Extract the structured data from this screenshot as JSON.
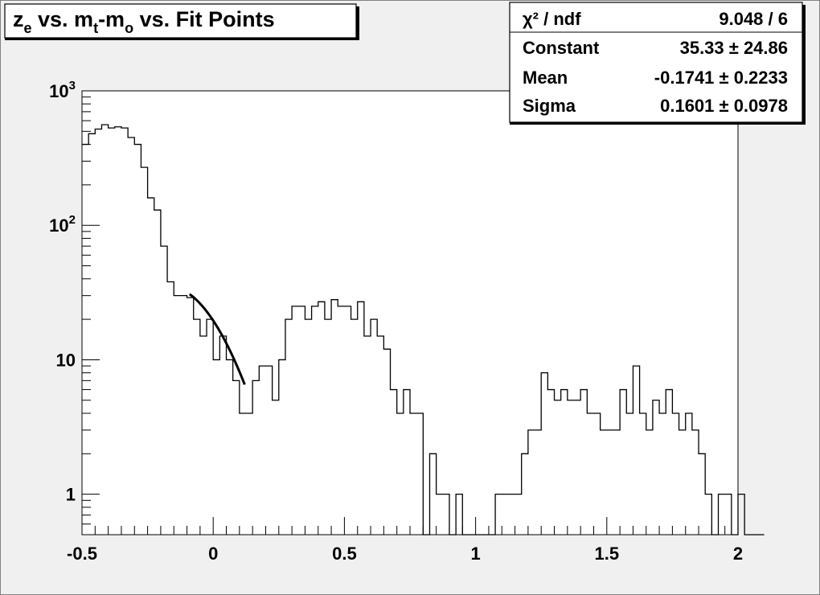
{
  "chart_data": {
    "type": "histogram",
    "title": {
      "base": "z",
      "sub1": "e",
      "mid1": " vs. m",
      "sub2": "t",
      "mid2": "-m",
      "sub3": "o",
      "tail": " vs. Fit Points"
    },
    "xlabel": "",
    "ylabel": "",
    "x_scale": "linear",
    "y_scale": "log",
    "xlim": [
      -0.5,
      2.0
    ],
    "ylim": [
      0.5,
      1000
    ],
    "grid": false,
    "x_ticks": [
      {
        "v": -0.5,
        "label": "-0.5"
      },
      {
        "v": 0,
        "label": "0"
      },
      {
        "v": 0.5,
        "label": "0.5"
      },
      {
        "v": 1,
        "label": "1"
      },
      {
        "v": 1.5,
        "label": "1.5"
      },
      {
        "v": 2,
        "label": "2"
      }
    ],
    "y_ticks": [
      {
        "v": 1000,
        "base": "10",
        "exp": "3"
      },
      {
        "v": 100,
        "base": "10",
        "exp": "2"
      },
      {
        "v": 10,
        "base": "10",
        "exp": ""
      },
      {
        "v": 1,
        "base": "1",
        "exp": ""
      }
    ],
    "bins": {
      "start": -0.5,
      "width": 0.025,
      "counts": [
        400,
        480,
        520,
        560,
        530,
        540,
        530,
        450,
        400,
        270,
        160,
        130,
        70,
        38,
        30,
        30,
        29,
        20,
        15,
        20,
        10,
        15,
        10,
        7,
        4,
        4,
        7,
        9,
        9,
        5,
        10,
        20,
        25,
        25,
        20,
        25,
        27,
        20,
        28,
        25,
        25,
        20,
        27,
        15,
        20,
        15,
        12,
        6,
        4,
        6,
        4,
        4,
        0,
        2,
        1,
        1,
        0,
        1,
        0,
        0,
        0,
        0,
        0,
        1,
        1,
        1,
        1,
        2,
        3,
        3,
        8,
        6,
        5,
        6,
        5,
        5,
        6,
        4,
        4,
        3,
        3,
        3,
        6,
        4,
        9,
        4,
        3,
        5,
        4,
        6,
        4,
        3,
        4,
        3,
        2,
        1,
        0,
        1,
        1,
        0,
        1,
        0,
        0,
        0
      ]
    },
    "fit": {
      "function": "gaus",
      "x_range": [
        -0.09,
        0.12
      ],
      "constant": 35.33,
      "mean": -0.1741,
      "sigma": 0.1601
    },
    "stats_box": {
      "rows": [
        {
          "label": "χ² / ndf",
          "value": "9.048 / 6"
        },
        {
          "label": "Constant",
          "value": "35.33 ± 24.86"
        },
        {
          "label": "Mean",
          "value": "-0.1741 ± 0.2233"
        },
        {
          "label": "Sigma",
          "value": "0.1601 ± 0.0978"
        }
      ]
    },
    "colors": {
      "background": "#f0f0f0",
      "frame": "#ffffff",
      "line": "#000000"
    }
  }
}
